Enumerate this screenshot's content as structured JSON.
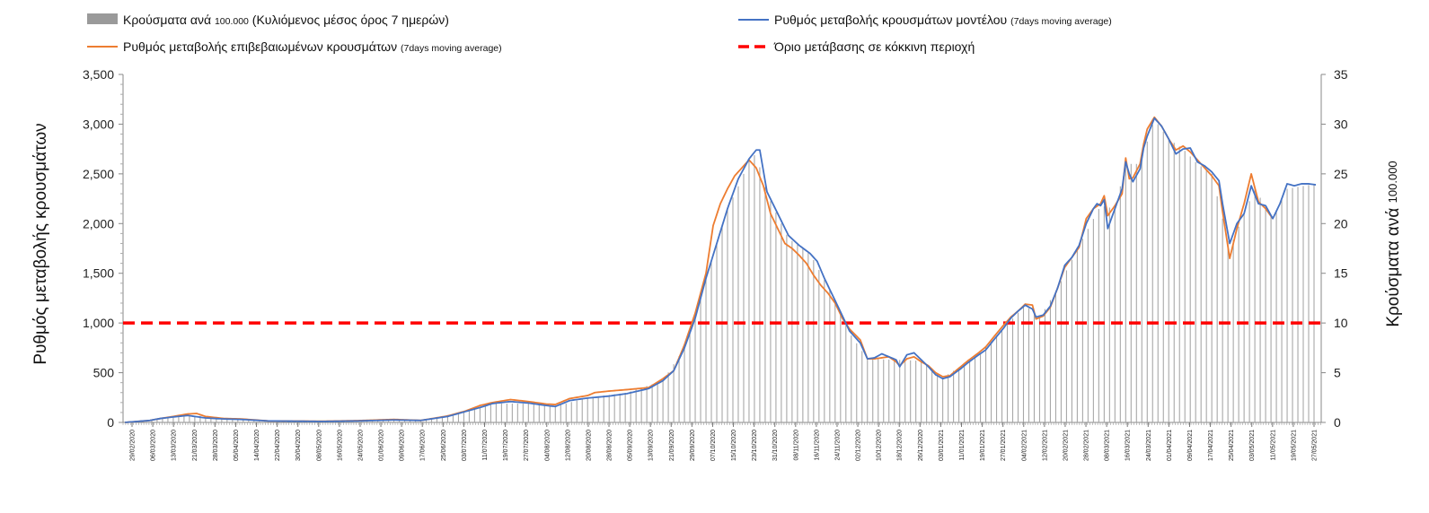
{
  "chart_data": {
    "type": "bar+line",
    "title": "",
    "legend": [
      {
        "key": "cases",
        "label": "Κρούσματα ανά ",
        "small": "100.000",
        "label2": " (Κυλιόμενος μέσος όρος 7 ημερών)",
        "color": "#9a9a9a",
        "style": "bar"
      },
      {
        "key": "model",
        "label": "Ρυθμός μεταβολής κρουσμάτων μοντέλου ",
        "small": "(7days moving average)",
        "label2": "",
        "color": "#4472c4",
        "style": "line"
      },
      {
        "key": "confirmed",
        "label": "Ρυθμός μεταβολής επιβεβαιωμένων κρουσμάτων ",
        "small": "(7days moving average)",
        "label2": "",
        "color": "#ed7d31",
        "style": "line"
      },
      {
        "key": "threshold",
        "label": "Όριο μετάβασης σε κόκκινη περιοχή",
        "small": "",
        "label2": "",
        "color": "#ff0000",
        "style": "dashed"
      }
    ],
    "ylabel_left": "Ρυθμός μεταβολής κρουσμάτων",
    "ylabel_right_main": "Κρούσματα ανά ",
    "ylabel_right_small": "100.000",
    "ylim_left": [
      0,
      3500
    ],
    "ylim_right": [
      0,
      35
    ],
    "yticks_left": [
      "0",
      "500",
      "1,000",
      "1,500",
      "2,000",
      "2,500",
      "3,000",
      "3,500"
    ],
    "yticks_right": [
      "0",
      "5",
      "10",
      "15",
      "20",
      "25",
      "30",
      "35"
    ],
    "threshold_value": 1000,
    "days": 458,
    "xtick_labels": [
      "29/02/2020",
      "06/03/2020",
      "13/03/2020",
      "21/03/2020",
      "28/03/2020",
      "05/04/2020",
      "14/04/2020",
      "22/04/2020",
      "30/04/2020",
      "08/05/2020",
      "16/05/2020",
      "24/05/2020",
      "01/06/2020",
      "09/06/2020",
      "17/06/2020",
      "25/06/2020",
      "03/07/2020",
      "11/07/2020",
      "19/07/2020",
      "27/07/2020",
      "04/08/2020",
      "12/08/2020",
      "20/08/2020",
      "28/08/2020",
      "05/09/2020",
      "13/09/2020",
      "21/09/2020",
      "29/09/2020",
      "07/10/2020",
      "15/10/2020",
      "23/10/2020",
      "31/10/2020",
      "08/11/2020",
      "16/11/2020",
      "24/11/2020",
      "02/12/2020",
      "10/12/2020",
      "18/12/2020",
      "26/12/2020",
      "03/01/2021",
      "11/01/2021",
      "19/01/2021",
      "27/01/2021",
      "04/02/2021",
      "12/02/2021",
      "20/02/2021",
      "28/02/2021",
      "08/03/2021",
      "16/03/2021",
      "24/03/2021",
      "01/04/2021",
      "09/04/2021",
      "17/04/2021",
      "25/04/2021",
      "03/05/2021",
      "11/05/2021",
      "19/05/2021",
      "27/05/2021"
    ],
    "model_anchors": [
      [
        0,
        0
      ],
      [
        14,
        20
      ],
      [
        20,
        40
      ],
      [
        27,
        55
      ],
      [
        35,
        70
      ],
      [
        45,
        45
      ],
      [
        55,
        35
      ],
      [
        65,
        30
      ],
      [
        80,
        15
      ],
      [
        110,
        10
      ],
      [
        130,
        15
      ],
      [
        150,
        25
      ],
      [
        165,
        20
      ],
      [
        180,
        60
      ],
      [
        190,
        110
      ],
      [
        198,
        150
      ],
      [
        205,
        190
      ],
      [
        215,
        210
      ],
      [
        225,
        195
      ],
      [
        235,
        170
      ],
      [
        240,
        160
      ],
      [
        248,
        220
      ],
      [
        258,
        245
      ],
      [
        270,
        265
      ],
      [
        280,
        290
      ],
      [
        292,
        340
      ],
      [
        300,
        420
      ],
      [
        306,
        520
      ],
      [
        312,
        750
      ],
      [
        318,
        1050
      ],
      [
        324,
        1450
      ],
      [
        330,
        1800
      ],
      [
        336,
        2150
      ],
      [
        342,
        2450
      ],
      [
        348,
        2650
      ],
      [
        352,
        2740
      ],
      [
        354,
        2740
      ],
      [
        358,
        2320
      ],
      [
        364,
        2100
      ],
      [
        370,
        1880
      ],
      [
        376,
        1780
      ],
      [
        382,
        1700
      ],
      [
        386,
        1620
      ],
      [
        390,
        1450
      ],
      [
        394,
        1300
      ],
      [
        398,
        1150
      ],
      [
        404,
        920
      ],
      [
        410,
        800
      ],
      [
        414,
        640
      ],
      [
        418,
        650
      ],
      [
        422,
        690
      ],
      [
        426,
        660
      ],
      [
        430,
        630
      ],
      [
        432,
        560
      ],
      [
        436,
        680
      ],
      [
        440,
        700
      ],
      [
        444,
        630
      ],
      [
        448,
        560
      ],
      [
        452,
        480
      ],
      [
        456,
        440
      ],
      [
        460,
        460
      ],
      [
        466,
        540
      ],
      [
        470,
        600
      ],
      [
        476,
        680
      ],
      [
        480,
        730
      ],
      [
        484,
        820
      ],
      [
        490,
        950
      ],
      [
        494,
        1050
      ],
      [
        498,
        1120
      ],
      [
        502,
        1180
      ],
      [
        506,
        1140
      ],
      [
        508,
        1060
      ],
      [
        512,
        1080
      ],
      [
        516,
        1170
      ],
      [
        520,
        1350
      ],
      [
        524,
        1580
      ],
      [
        528,
        1660
      ],
      [
        532,
        1780
      ],
      [
        536,
        2000
      ],
      [
        540,
        2150
      ],
      [
        542,
        2200
      ],
      [
        544,
        2180
      ],
      [
        546,
        2240
      ],
      [
        548,
        1950
      ],
      [
        552,
        2150
      ],
      [
        556,
        2350
      ],
      [
        558,
        2620
      ],
      [
        560,
        2500
      ],
      [
        562,
        2420
      ],
      [
        566,
        2550
      ],
      [
        568,
        2760
      ],
      [
        570,
        2880
      ],
      [
        574,
        3060
      ],
      [
        578,
        2980
      ],
      [
        582,
        2850
      ],
      [
        586,
        2700
      ],
      [
        590,
        2750
      ],
      [
        594,
        2760
      ],
      [
        598,
        2620
      ],
      [
        602,
        2580
      ],
      [
        606,
        2520
      ],
      [
        610,
        2430
      ],
      [
        612,
        2200
      ],
      [
        616,
        1800
      ],
      [
        620,
        2000
      ],
      [
        624,
        2100
      ],
      [
        628,
        2380
      ],
      [
        632,
        2200
      ],
      [
        636,
        2180
      ],
      [
        640,
        2050
      ],
      [
        644,
        2200
      ],
      [
        648,
        2400
      ],
      [
        652,
        2380
      ],
      [
        656,
        2400
      ],
      [
        660,
        2400
      ],
      [
        664,
        2390
      ]
    ],
    "confirmed_anchors": [
      [
        0,
        0
      ],
      [
        14,
        20
      ],
      [
        20,
        40
      ],
      [
        27,
        60
      ],
      [
        35,
        85
      ],
      [
        40,
        90
      ],
      [
        45,
        60
      ],
      [
        55,
        40
      ],
      [
        65,
        35
      ],
      [
        80,
        15
      ],
      [
        110,
        12
      ],
      [
        130,
        18
      ],
      [
        150,
        30
      ],
      [
        165,
        20
      ],
      [
        180,
        65
      ],
      [
        190,
        115
      ],
      [
        198,
        170
      ],
      [
        205,
        200
      ],
      [
        215,
        230
      ],
      [
        225,
        210
      ],
      [
        235,
        185
      ],
      [
        240,
        180
      ],
      [
        248,
        240
      ],
      [
        258,
        270
      ],
      [
        262,
        300
      ],
      [
        270,
        315
      ],
      [
        280,
        330
      ],
      [
        292,
        350
      ],
      [
        300,
        440
      ],
      [
        306,
        520
      ],
      [
        312,
        780
      ],
      [
        318,
        1100
      ],
      [
        324,
        1500
      ],
      [
        328,
        1980
      ],
      [
        332,
        2200
      ],
      [
        336,
        2350
      ],
      [
        340,
        2480
      ],
      [
        344,
        2560
      ],
      [
        348,
        2640
      ],
      [
        352,
        2560
      ],
      [
        356,
        2380
      ],
      [
        360,
        2100
      ],
      [
        364,
        1950
      ],
      [
        368,
        1800
      ],
      [
        372,
        1750
      ],
      [
        376,
        1680
      ],
      [
        380,
        1600
      ],
      [
        384,
        1480
      ],
      [
        388,
        1380
      ],
      [
        392,
        1300
      ],
      [
        396,
        1200
      ],
      [
        400,
        1050
      ],
      [
        404,
        940
      ],
      [
        410,
        830
      ],
      [
        414,
        640
      ],
      [
        418,
        640
      ],
      [
        422,
        650
      ],
      [
        426,
        660
      ],
      [
        430,
        610
      ],
      [
        432,
        570
      ],
      [
        436,
        640
      ],
      [
        440,
        660
      ],
      [
        444,
        610
      ],
      [
        448,
        570
      ],
      [
        452,
        500
      ],
      [
        456,
        460
      ],
      [
        460,
        470
      ],
      [
        466,
        560
      ],
      [
        470,
        620
      ],
      [
        476,
        700
      ],
      [
        480,
        760
      ],
      [
        484,
        850
      ],
      [
        490,
        980
      ],
      [
        494,
        1060
      ],
      [
        498,
        1120
      ],
      [
        502,
        1190
      ],
      [
        506,
        1180
      ],
      [
        508,
        1040
      ],
      [
        512,
        1070
      ],
      [
        516,
        1160
      ],
      [
        520,
        1350
      ],
      [
        524,
        1560
      ],
      [
        528,
        1660
      ],
      [
        532,
        1760
      ],
      [
        536,
        2050
      ],
      [
        540,
        2150
      ],
      [
        544,
        2200
      ],
      [
        546,
        2280
      ],
      [
        548,
        2080
      ],
      [
        552,
        2180
      ],
      [
        556,
        2300
      ],
      [
        558,
        2660
      ],
      [
        560,
        2450
      ],
      [
        562,
        2460
      ],
      [
        566,
        2600
      ],
      [
        568,
        2800
      ],
      [
        570,
        2950
      ],
      [
        574,
        3070
      ],
      [
        578,
        2980
      ],
      [
        582,
        2850
      ],
      [
        586,
        2740
      ],
      [
        590,
        2780
      ],
      [
        594,
        2720
      ],
      [
        598,
        2640
      ],
      [
        602,
        2560
      ],
      [
        606,
        2480
      ],
      [
        610,
        2380
      ],
      [
        612,
        2120
      ],
      [
        616,
        1650
      ],
      [
        620,
        1950
      ],
      [
        624,
        2200
      ],
      [
        628,
        2500
      ],
      [
        632,
        2220
      ],
      [
        636,
        2150
      ],
      [
        640,
        2050
      ]
    ],
    "cases_anchors": [
      [
        0,
        0
      ],
      [
        14,
        0.2
      ],
      [
        27,
        0.5
      ],
      [
        40,
        0.7
      ],
      [
        55,
        0.3
      ],
      [
        80,
        0.15
      ],
      [
        130,
        0.15
      ],
      [
        165,
        0.2
      ],
      [
        190,
        1.1
      ],
      [
        205,
        1.9
      ],
      [
        225,
        1.9
      ],
      [
        240,
        1.6
      ],
      [
        258,
        2.5
      ],
      [
        280,
        3.0
      ],
      [
        300,
        4.2
      ],
      [
        312,
        7.5
      ],
      [
        324,
        14.5
      ],
      [
        336,
        21.5
      ],
      [
        344,
        24.5
      ],
      [
        348,
        26.5
      ],
      [
        352,
        27.0
      ],
      [
        358,
        23.0
      ],
      [
        370,
        18.5
      ],
      [
        382,
        17.0
      ],
      [
        394,
        13.0
      ],
      [
        404,
        9.0
      ],
      [
        414,
        6.4
      ],
      [
        430,
        6.3
      ],
      [
        444,
        6.2
      ],
      [
        456,
        4.5
      ],
      [
        476,
        6.8
      ],
      [
        490,
        9.5
      ],
      [
        502,
        11.8
      ],
      [
        510,
        10.5
      ],
      [
        520,
        13.5
      ],
      [
        532,
        17.8
      ],
      [
        544,
        21.8
      ],
      [
        552,
        21.5
      ],
      [
        558,
        26.0
      ],
      [
        566,
        26.0
      ],
      [
        574,
        30.5
      ],
      [
        582,
        28.5
      ],
      [
        590,
        27.5
      ],
      [
        598,
        26.0
      ],
      [
        606,
        25.0
      ],
      [
        616,
        17.5
      ],
      [
        624,
        21.0
      ],
      [
        630,
        23.5
      ],
      [
        640,
        20.5
      ],
      [
        648,
        23.5
      ],
      [
        664,
        24.0
      ]
    ],
    "days_model": 664
  }
}
